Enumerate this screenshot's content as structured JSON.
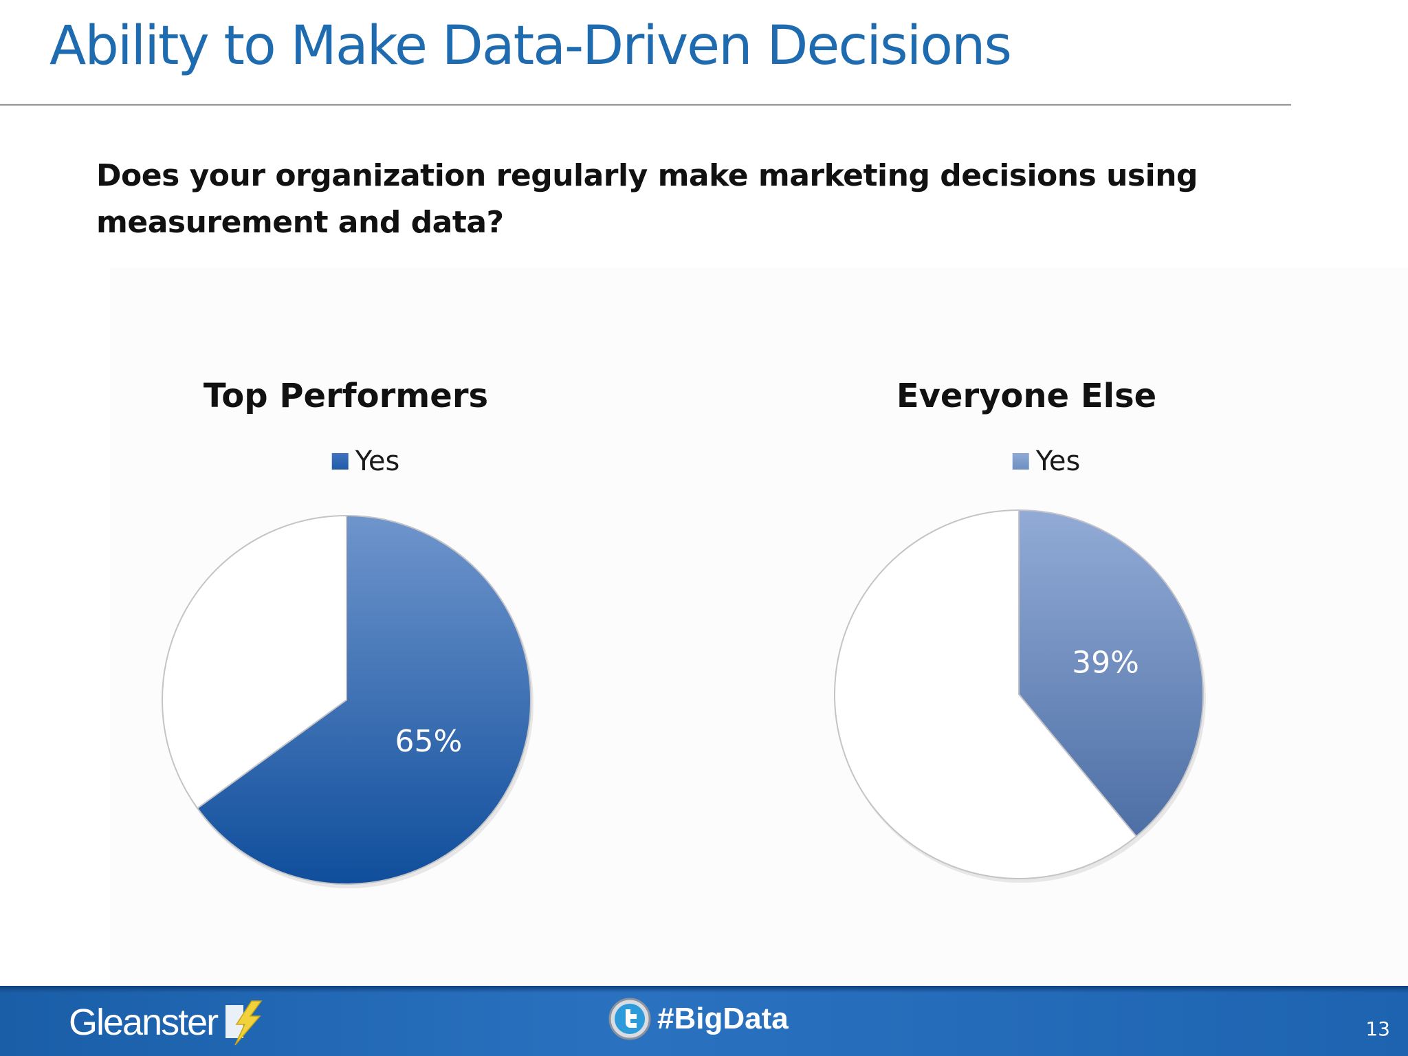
{
  "slide": {
    "title": "Ability to Make Data-Driven Decisions",
    "question": "Does your organization regularly make marketing decisions using measurement and data?"
  },
  "chart_data": [
    {
      "type": "pie",
      "title": "Top Performers",
      "legend": [
        "Yes"
      ],
      "legend_position": "top",
      "slices": [
        {
          "label": "Yes",
          "value": 65,
          "display": "65%",
          "color": "#1f5aa6"
        },
        {
          "label": "",
          "value": 35,
          "color": "#ffffff"
        }
      ]
    },
    {
      "type": "pie",
      "title": "Everyone Else",
      "legend": [
        "Yes"
      ],
      "legend_position": "top",
      "slices": [
        {
          "label": "Yes",
          "value": 39,
          "display": "39%",
          "color": "#6d8fc0"
        },
        {
          "label": "",
          "value": 61,
          "color": "#ffffff"
        }
      ]
    }
  ],
  "footer": {
    "logo_text": "Gleanster",
    "hashtag": "#BigData",
    "page_number": "13",
    "twitter_icon": "twitter-bird-icon",
    "logo_icon": "lightning-bolt-icon"
  }
}
